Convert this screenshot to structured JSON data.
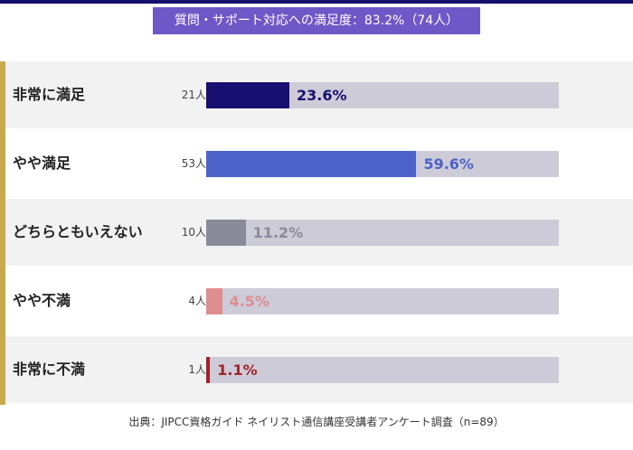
{
  "title": "質問・サポート対応への満足度：83.2%（74人）",
  "footer": "出典：JIPCC資格ガイド ネイリスト通信講座受講者アンケート調査（n=89）",
  "chart_data": {
    "type": "bar",
    "orientation": "horizontal",
    "categories": [
      "非常に満足",
      "やや満足",
      "どちらともいえない",
      "やや不満",
      "非常に不満"
    ],
    "counts": [
      "21人",
      "53人",
      "10人",
      "4人",
      "1人"
    ],
    "values": [
      23.6,
      59.6,
      11.2,
      4.5,
      1.1
    ],
    "value_labels": [
      "23.6%",
      "59.6%",
      "11.2%",
      "4.5%",
      "1.1%"
    ],
    "xlim": [
      0,
      100
    ],
    "colors": [
      "#170f70",
      "#4c62c8",
      "#8b8a9b",
      "#de8e8f",
      "#a1222a"
    ],
    "label_colors": [
      "#170f70",
      "#4c62c8",
      "#8b8a9b",
      "#de8e8f",
      "#a1222a"
    ],
    "track_color": "#cccbd7"
  }
}
